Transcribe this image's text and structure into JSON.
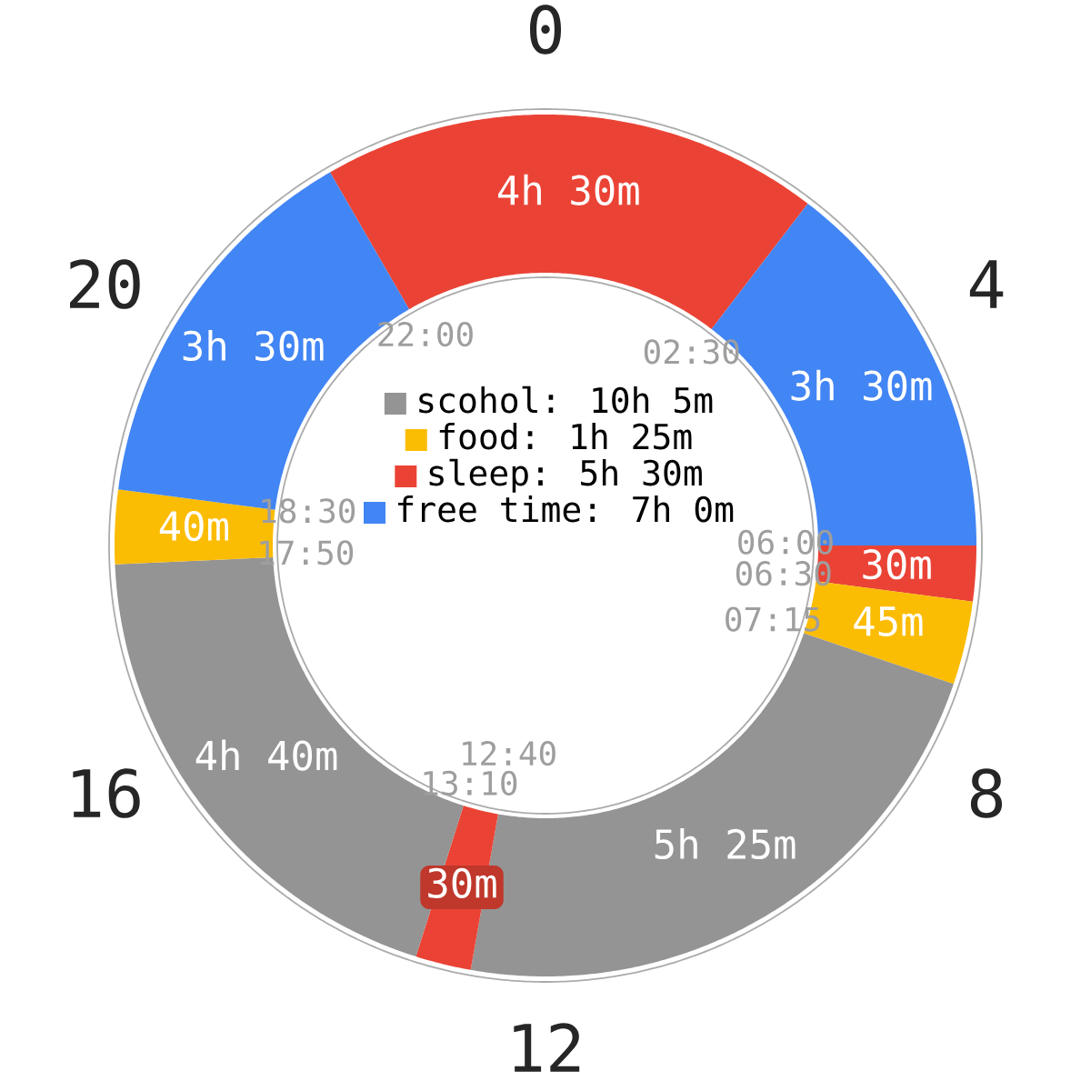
{
  "chart_data": {
    "type": "donut",
    "categories": [
      null,
      "free time: 7h 0m",
      "sleep: 5h 30m",
      "food: 1h 25m",
      "scohol: 10h 5m",
      null,
      null,
      null,
      null
    ],
    "values": [
      4.5,
      3.5,
      0.5,
      0.75,
      5.4167,
      0.5,
      4.6667,
      0.6667,
      3.5
    ],
    "colors": [
      "#ea4335",
      "#4285f4",
      "#ea4335",
      "#fbbc04",
      "#949494",
      "#ea4335",
      "#949494",
      "#fbbc04",
      "#4285f4"
    ],
    "annotations": [
      "4h 30m",
      "3h 30m",
      "30m",
      "45m",
      "5h 25m",
      "30m",
      "4h 40m",
      "40m",
      "3h 30m",
      "22:00",
      "02:30",
      "06:00",
      "06:30",
      "07:15",
      "12:40",
      "13:10",
      "17:50",
      "18:30",
      "0",
      "4",
      "8",
      "12",
      "16",
      "20"
    ],
    "legend": "center"
  }
}
